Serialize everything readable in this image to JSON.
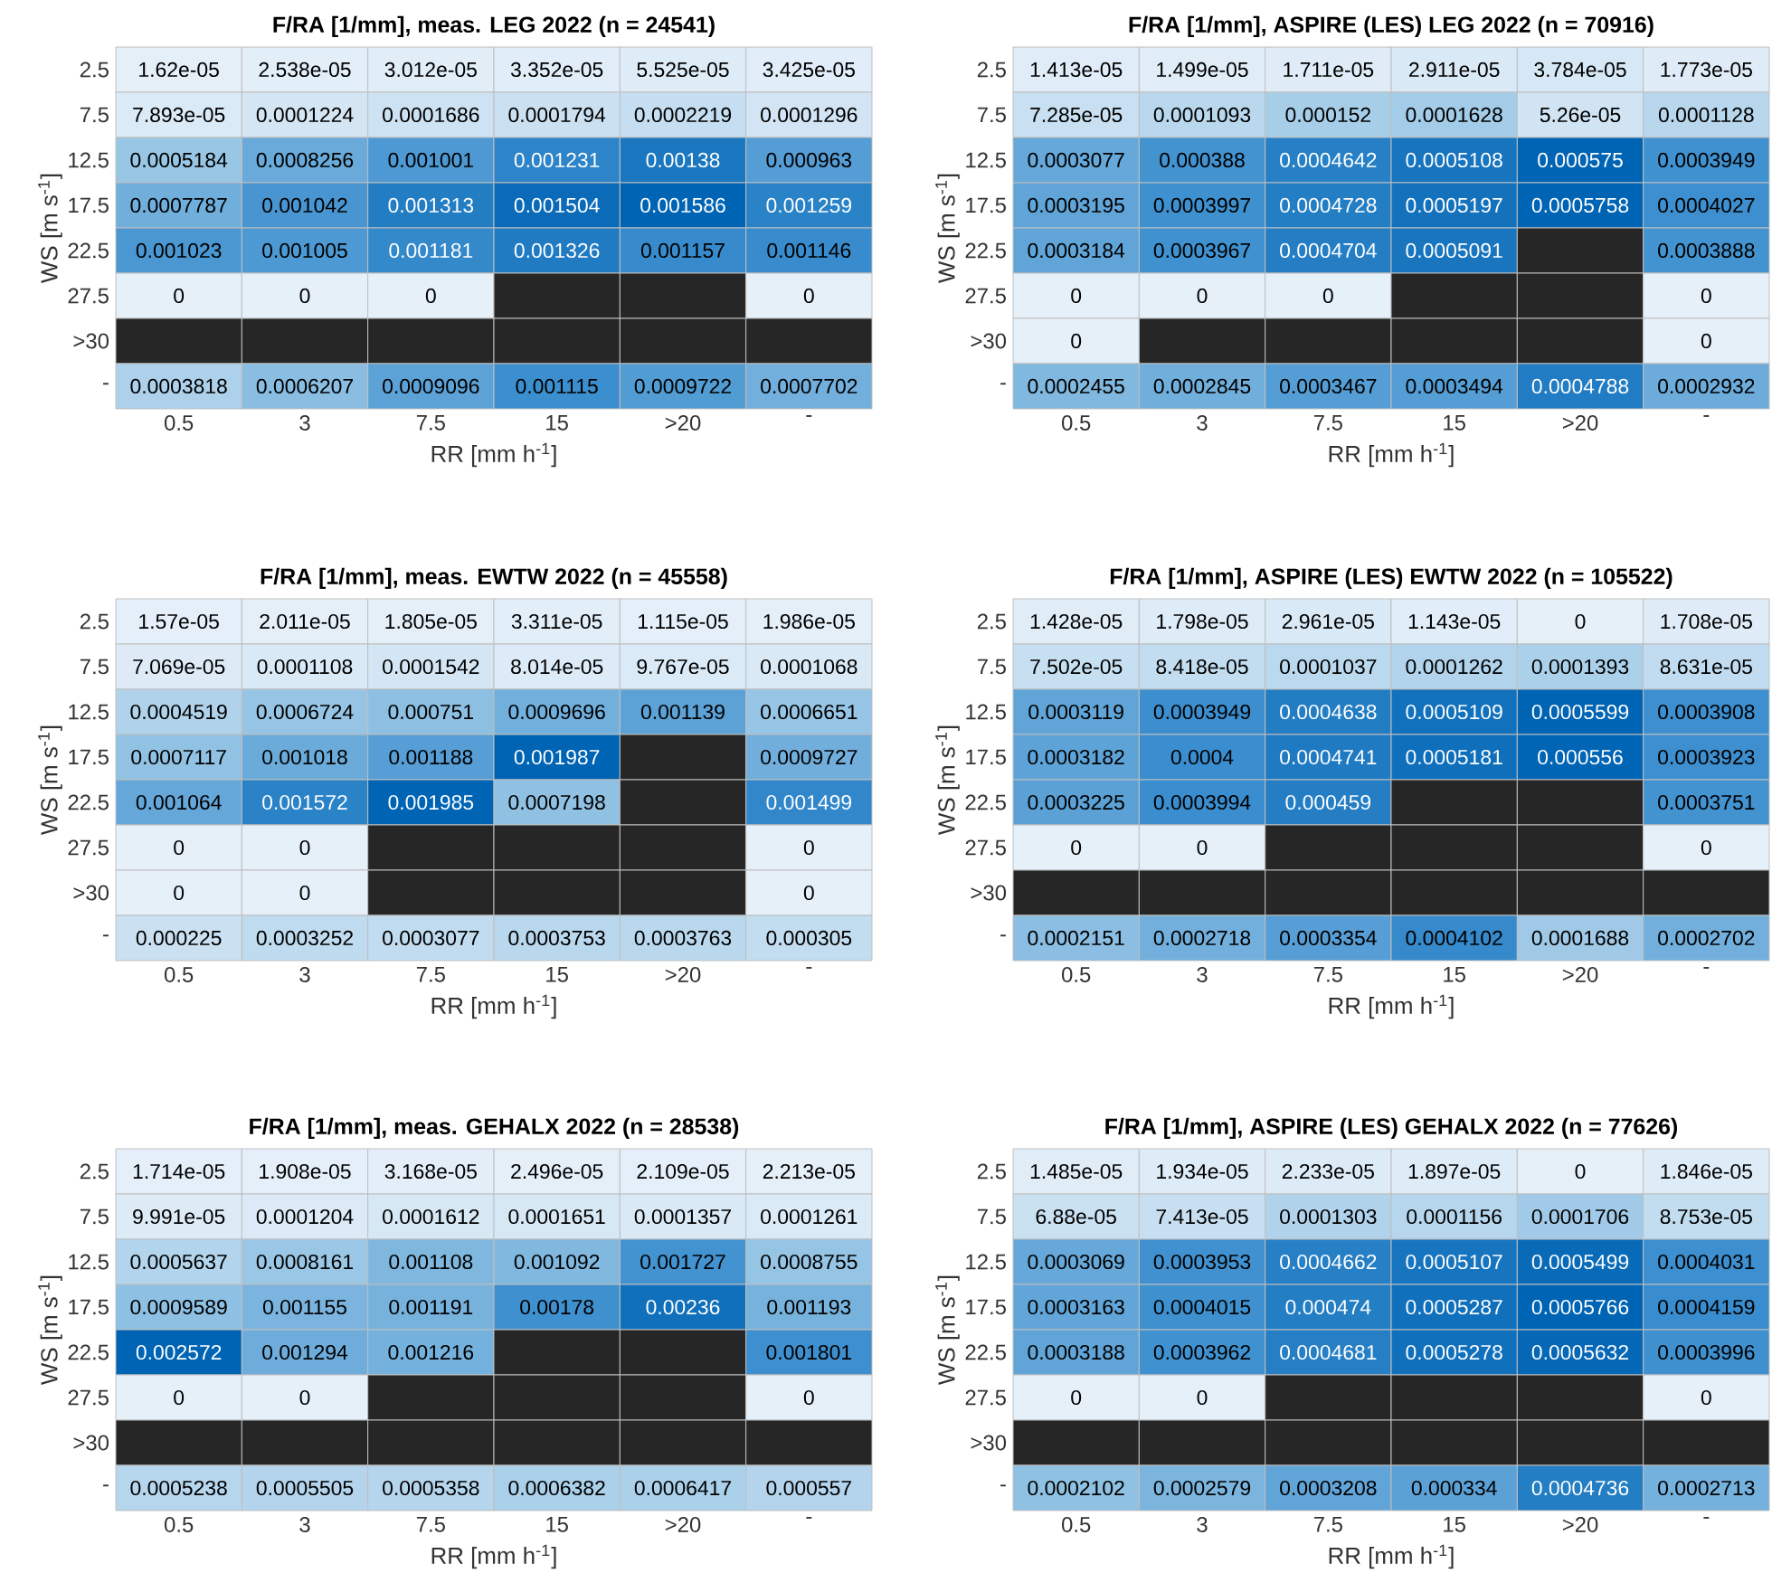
{
  "chart_data": [
    {
      "type": "heatmap",
      "data_labels": true,
      "title": "F/RA [1/mm], meas. LEG 2022 (n = 24541)",
      "xlabel": "RR [mm h$^{-1}$]",
      "ylabel": "WS [m s$^{-1}$]",
      "categories": [
        "0.5",
        "3",
        "7.5",
        "15",
        ">20",
        "-"
      ],
      "y_categories": [
        "2.5",
        "7.5",
        "12.5",
        "17.5",
        "22.5",
        "27.5",
        ">30",
        "-"
      ],
      "cells": [
        [
          1.62e-05,
          2.538e-05,
          3.012e-05,
          3.352e-05,
          5.525e-05,
          3.425e-05
        ],
        [
          7.893e-05,
          0.0001224,
          0.0001686,
          0.0001794,
          0.0002219,
          0.0001296
        ],
        [
          0.0005184,
          0.0008256,
          0.001001,
          0.001231,
          0.00138,
          0.000963
        ],
        [
          0.0007787,
          0.001042,
          0.001313,
          0.001504,
          0.001586,
          0.001259
        ],
        [
          0.001023,
          0.001005,
          0.001181,
          0.001326,
          0.001157,
          0.001146
        ],
        [
          0,
          0,
          0,
          null,
          null,
          0
        ],
        [
          null,
          null,
          null,
          null,
          null,
          null
        ],
        [
          0.0003818,
          0.0006207,
          0.0009096,
          0.001115,
          0.0009722,
          0.0007702
        ]
      ]
    },
    {
      "type": "heatmap",
      "data_labels": true,
      "title": "F/RA [1/mm], ASPIRE (LES) LEG 2022 (n = 70916)",
      "xlabel": "RR [mm h$^{-1}$]",
      "ylabel": "WS [m s$^{-1}$]",
      "categories": [
        "0.5",
        "3",
        "7.5",
        "15",
        ">20",
        "-"
      ],
      "y_categories": [
        "2.5",
        "7.5",
        "12.5",
        "17.5",
        "22.5",
        "27.5",
        ">30",
        "-"
      ],
      "cells": [
        [
          1.413e-05,
          1.499e-05,
          1.711e-05,
          2.911e-05,
          3.784e-05,
          1.773e-05
        ],
        [
          7.285e-05,
          0.0001093,
          0.000152,
          0.0001628,
          5.26e-05,
          0.0001128
        ],
        [
          0.0003077,
          0.000388,
          0.0004642,
          0.0005108,
          0.000575,
          0.0003949
        ],
        [
          0.0003195,
          0.0003997,
          0.0004728,
          0.0005197,
          0.0005758,
          0.0004027
        ],
        [
          0.0003184,
          0.0003967,
          0.0004704,
          0.0005091,
          null,
          0.0003888
        ],
        [
          0,
          0,
          0,
          null,
          null,
          0
        ],
        [
          0,
          null,
          null,
          null,
          null,
          0
        ],
        [
          0.0002455,
          0.0002845,
          0.0003467,
          0.0003494,
          0.0004788,
          0.0002932
        ]
      ]
    },
    {
      "type": "heatmap",
      "data_labels": true,
      "title": "F/RA [1/mm], meas. EWTW 2022 (n = 45558)",
      "xlabel": "RR [mm h$^{-1}$]",
      "ylabel": "WS [m s$^{-1}$]",
      "categories": [
        "0.5",
        "3",
        "7.5",
        "15",
        ">20",
        "-"
      ],
      "y_categories": [
        "2.5",
        "7.5",
        "12.5",
        "17.5",
        "22.5",
        "27.5",
        ">30",
        "-"
      ],
      "cells": [
        [
          1.57e-05,
          2.011e-05,
          1.805e-05,
          3.311e-05,
          1.115e-05,
          1.986e-05
        ],
        [
          7.069e-05,
          0.0001108,
          0.0001542,
          8.014e-05,
          9.767e-05,
          0.0001068
        ],
        [
          0.0004519,
          0.0006724,
          0.000751,
          0.0009696,
          0.001139,
          0.0006651
        ],
        [
          0.0007117,
          0.001018,
          0.001188,
          0.001987,
          null,
          0.0009727
        ],
        [
          0.001064,
          0.001572,
          0.001985,
          0.0007198,
          null,
          0.001499
        ],
        [
          0,
          0,
          null,
          null,
          null,
          0
        ],
        [
          0,
          0,
          null,
          null,
          null,
          0
        ],
        [
          0.000225,
          0.0003252,
          0.0003077,
          0.0003753,
          0.0003763,
          0.000305
        ]
      ]
    },
    {
      "type": "heatmap",
      "data_labels": true,
      "title": "F/RA [1/mm], ASPIRE (LES) EWTW 2022 (n = 105522)",
      "xlabel": "RR [mm h$^{-1}$]",
      "ylabel": "WS [m s$^{-1}$]",
      "categories": [
        "0.5",
        "3",
        "7.5",
        "15",
        ">20",
        "-"
      ],
      "y_categories": [
        "2.5",
        "7.5",
        "12.5",
        "17.5",
        "22.5",
        "27.5",
        ">30",
        "-"
      ],
      "cells": [
        [
          1.428e-05,
          1.798e-05,
          2.961e-05,
          1.143e-05,
          0,
          1.708e-05
        ],
        [
          7.502e-05,
          8.418e-05,
          0.0001037,
          0.0001262,
          0.0001393,
          8.631e-05
        ],
        [
          0.0003119,
          0.0003949,
          0.0004638,
          0.0005109,
          0.0005599,
          0.0003908
        ],
        [
          0.0003182,
          0.0004,
          0.0004741,
          0.0005181,
          0.000556,
          0.0003923
        ],
        [
          0.0003225,
          0.0003994,
          0.000459,
          null,
          null,
          0.0003751
        ],
        [
          0,
          0,
          null,
          null,
          null,
          0
        ],
        [
          null,
          null,
          null,
          null,
          null,
          null
        ],
        [
          0.0002151,
          0.0002718,
          0.0003354,
          0.0004102,
          0.0001688,
          0.0002702
        ]
      ]
    },
    {
      "type": "heatmap",
      "data_labels": true,
      "title": "F/RA [1/mm], meas. GEHALX 2022 (n = 28538)",
      "xlabel": "RR [mm h$^{-1}$]",
      "ylabel": "WS [m s$^{-1}$]",
      "categories": [
        "0.5",
        "3",
        "7.5",
        "15",
        ">20",
        "-"
      ],
      "y_categories": [
        "2.5",
        "7.5",
        "12.5",
        "17.5",
        "22.5",
        "27.5",
        ">30",
        "-"
      ],
      "cells": [
        [
          1.714e-05,
          1.908e-05,
          3.168e-05,
          2.496e-05,
          2.109e-05,
          2.213e-05
        ],
        [
          9.991e-05,
          0.0001204,
          0.0001612,
          0.0001651,
          0.0001357,
          0.0001261
        ],
        [
          0.0005637,
          0.0008161,
          0.001108,
          0.001092,
          0.001727,
          0.0008755
        ],
        [
          0.0009589,
          0.001155,
          0.001191,
          0.00178,
          0.00236,
          0.001193
        ],
        [
          0.002572,
          0.001294,
          0.001216,
          null,
          null,
          0.001801
        ],
        [
          0,
          0,
          null,
          null,
          null,
          0
        ],
        [
          null,
          null,
          null,
          null,
          null,
          null
        ],
        [
          0.0005238,
          0.0005505,
          0.0005358,
          0.0006382,
          0.0006417,
          0.000557
        ]
      ]
    },
    {
      "type": "heatmap",
      "data_labels": true,
      "title": "F/RA [1/mm], ASPIRE (LES) GEHALX 2022 (n = 77626)",
      "xlabel": "RR [mm h$^{-1}$]",
      "ylabel": "WS [m s$^{-1}$]",
      "categories": [
        "0.5",
        "3",
        "7.5",
        "15",
        ">20",
        "-"
      ],
      "y_categories": [
        "2.5",
        "7.5",
        "12.5",
        "17.5",
        "22.5",
        "27.5",
        ">30",
        "-"
      ],
      "cells": [
        [
          1.485e-05,
          1.934e-05,
          2.233e-05,
          1.897e-05,
          0,
          1.846e-05
        ],
        [
          6.88e-05,
          7.413e-05,
          0.0001303,
          0.0001156,
          0.0001706,
          8.753e-05
        ],
        [
          0.0003069,
          0.0003953,
          0.0004662,
          0.0005107,
          0.0005499,
          0.0004031
        ],
        [
          0.0003163,
          0.0004015,
          0.000474,
          0.0005287,
          0.0005766,
          0.0004159
        ],
        [
          0.0003188,
          0.0003962,
          0.0004681,
          0.0005278,
          0.0005632,
          0.0003996
        ],
        [
          0,
          0,
          null,
          null,
          null,
          0
        ],
        [
          null,
          null,
          null,
          null,
          null,
          null
        ],
        [
          0.0002102,
          0.0002579,
          0.0003208,
          0.000334,
          0.0004736,
          0.0002713
        ]
      ]
    }
  ]
}
